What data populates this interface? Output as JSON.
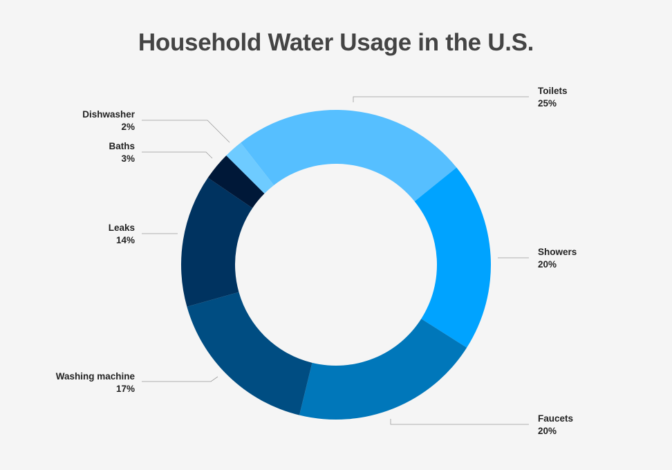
{
  "chart_data": {
    "type": "pie",
    "variant": "donut",
    "title": "Household Water Usage in the U.S.",
    "categories": [
      "Toilets",
      "Showers",
      "Faucets",
      "Washing machine",
      "Leaks",
      "Baths",
      "Dishwasher"
    ],
    "values": [
      25,
      20,
      20,
      17,
      14,
      3,
      2
    ],
    "value_labels": [
      "25%",
      "20%",
      "20%",
      "17%",
      "14%",
      "3%",
      "2%"
    ],
    "colors": [
      "#56bfff",
      "#00a3ff",
      "#0077ba",
      "#004d82",
      "#003360",
      "#001838",
      "#6ecbff"
    ],
    "legend": "none (leader-line labels)"
  }
}
